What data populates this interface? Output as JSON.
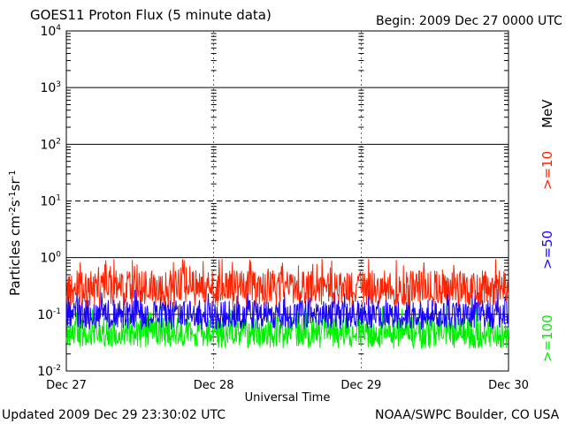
{
  "header": {
    "title": "GOES11 Proton Flux (5 minute data)",
    "begin": "Begin: 2009 Dec 27 0000 UTC"
  },
  "footer": {
    "updated": "Updated 2009 Dec 29 23:30:02 UTC",
    "credit": "NOAA/SWPC Boulder, CO USA"
  },
  "colors": {
    "ge10": "#ff2200",
    "ge50": "#1a00ff",
    "ge100": "#00ee00",
    "axis": "#000000",
    "background": "#ffffff"
  },
  "chart_data": {
    "type": "line",
    "title": "GOES11 Proton Flux (5 minute data)",
    "xlabel": "Universal Time",
    "ylabel": "Particles cm-2s-1sr-1",
    "y_scale": "log",
    "ylim": [
      0.01,
      10000
    ],
    "xlim_days": [
      0,
      3
    ],
    "x_tick_labels": [
      "Dec 27",
      "Dec 28",
      "Dec 29",
      "Dec 30"
    ],
    "y_tick_labels": [
      {
        "base": "10",
        "exp": "-2"
      },
      {
        "base": "10",
        "exp": "-1"
      },
      {
        "base": "10",
        "exp": "0"
      },
      {
        "base": "10",
        "exp": "1"
      },
      {
        "base": "10",
        "exp": "2"
      },
      {
        "base": "10",
        "exp": "3"
      },
      {
        "base": "10",
        "exp": "4"
      }
    ],
    "dashed_threshold": 10,
    "legend": {
      "unit": "MeV",
      "entries": [
        ">=10",
        ">=50",
        ">=100"
      ],
      "placement": "right"
    },
    "grid": "horizontal lines at each decade, vertical dashed tick columns at each day",
    "series": [
      {
        "name": ">=10",
        "color": "#ff2200",
        "base_level": 0.25,
        "spread_up": 2.4,
        "spread_down": 0.55
      },
      {
        "name": ">=50",
        "color": "#1a00ff",
        "base_level": 0.09,
        "spread_up": 2.0,
        "spread_down": 0.6
      },
      {
        "name": ">=100",
        "color": "#00ee00",
        "base_level": 0.045,
        "spread_up": 2.0,
        "spread_down": 0.55
      }
    ]
  }
}
